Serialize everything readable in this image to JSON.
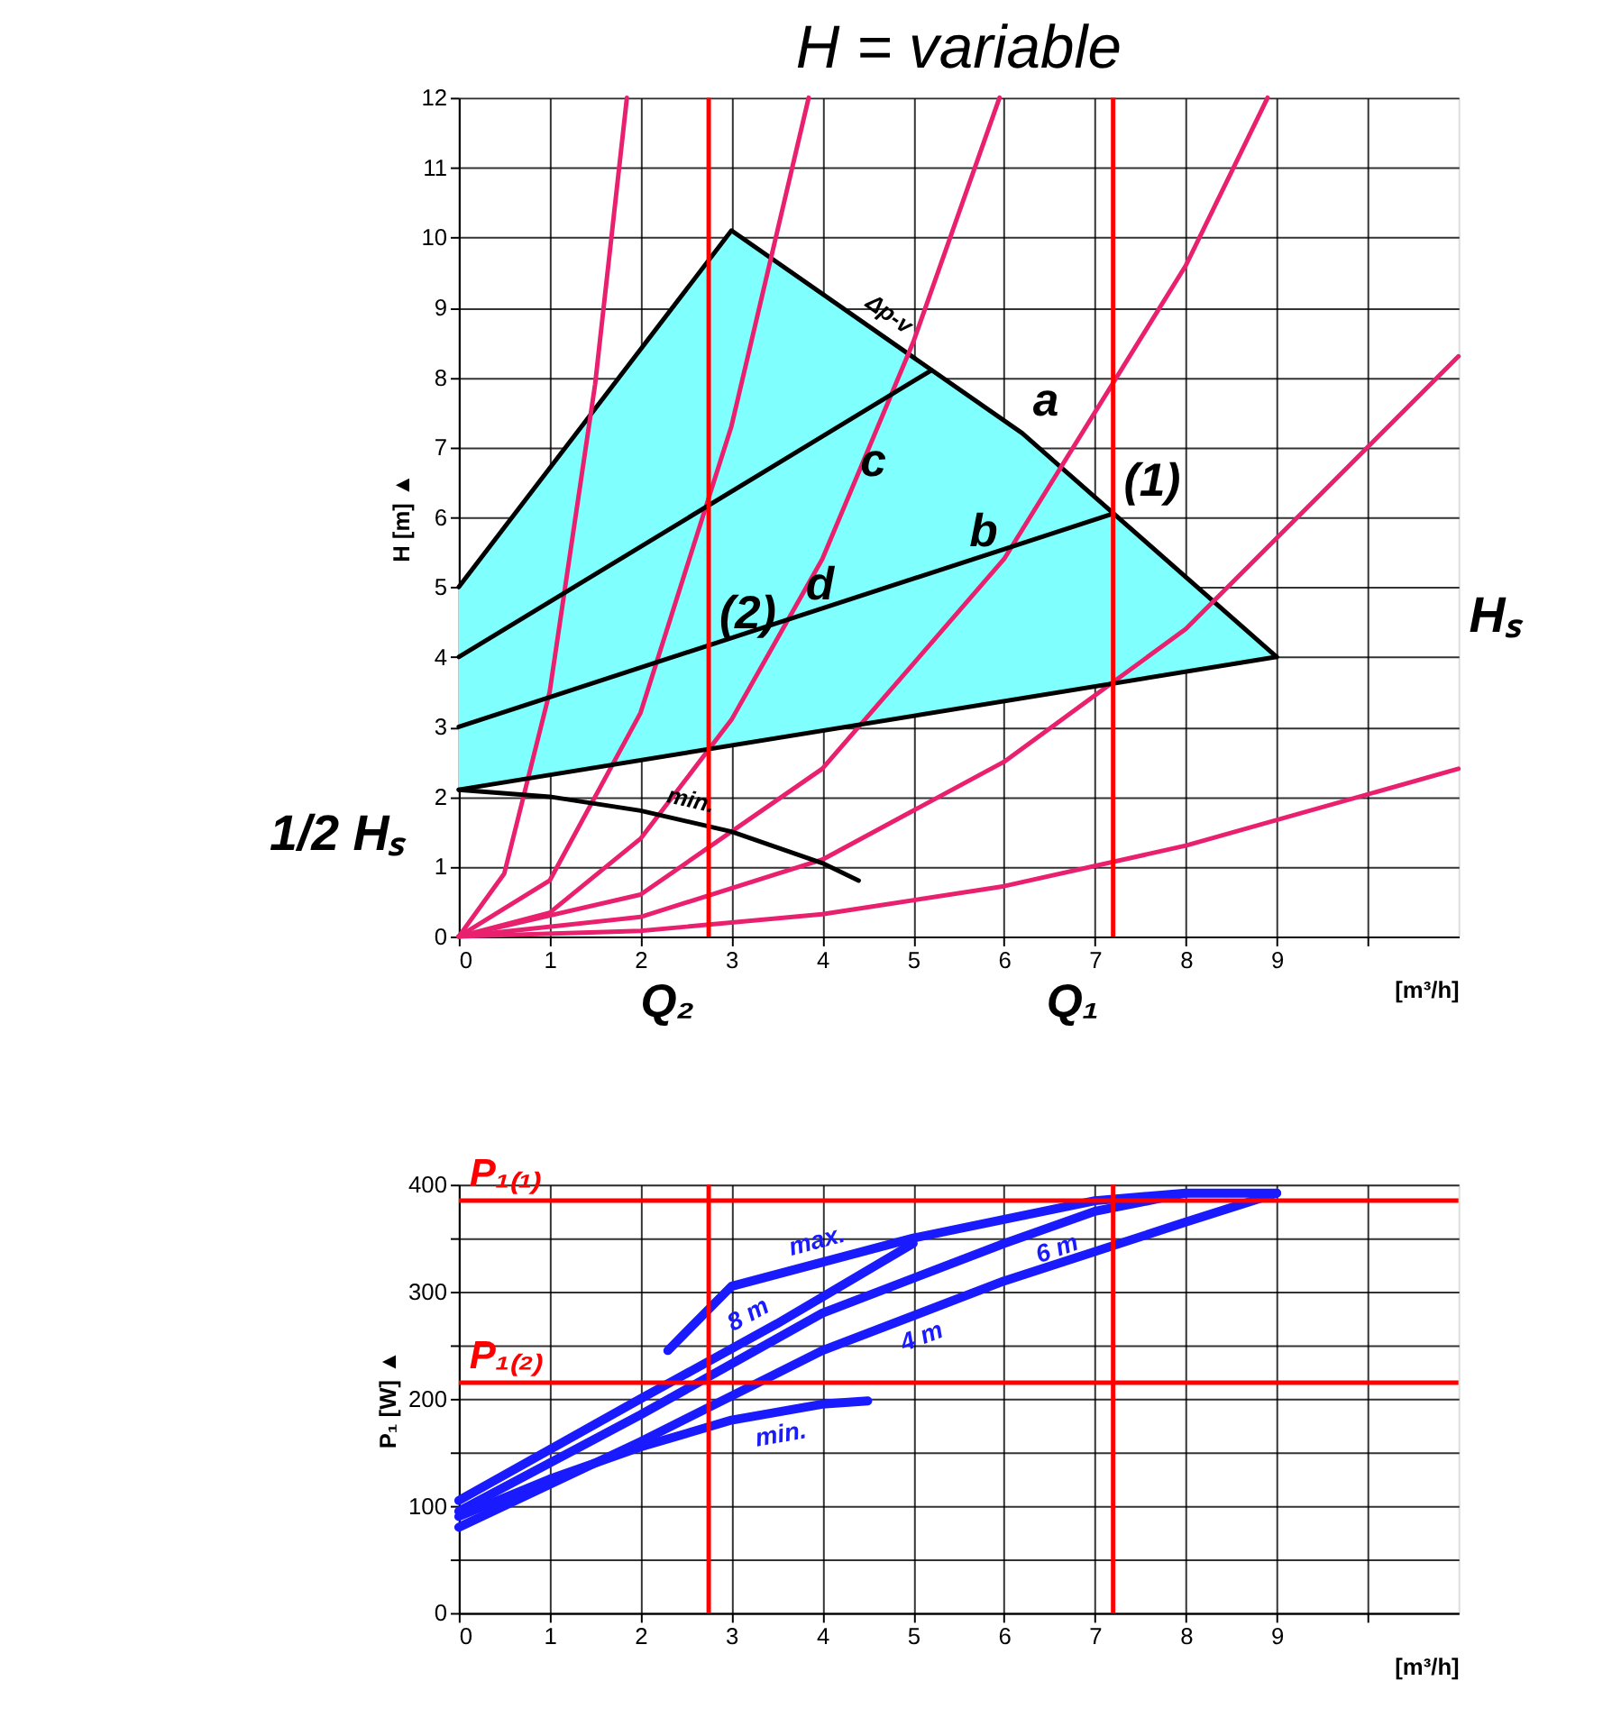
{
  "chart_data": [
    {
      "type": "line",
      "title": "H = variable",
      "xlabel": "[m³/h]",
      "ylabel": "H [m] ▲",
      "xlim": [
        0,
        11
      ],
      "xticks": [
        0,
        1,
        2,
        3,
        4,
        5,
        6,
        7,
        8,
        9,
        {
          "value": 10,
          "label": null
        }
      ],
      "ylim": [
        0,
        12
      ],
      "yticks": [
        0,
        1,
        2,
        3,
        4,
        5,
        6,
        7,
        8,
        9,
        10,
        11,
        12
      ],
      "grid": true,
      "legend": false,
      "series": [
        {
          "name": "Δp-v",
          "color": "#000000",
          "x": [
            0,
            3,
            6.2,
            9
          ],
          "values": [
            5,
            10.1,
            7.2,
            4
          ],
          "lower": [
            2.1,
            2.73,
            3.41,
            4
          ],
          "upper": [
            5,
            10.1,
            7.2,
            4
          ]
        },
        {
          "color": "#e8206e",
          "x": [
            0,
            0.5,
            1,
            1.5,
            1.85
          ],
          "values": [
            0,
            0.9,
            3.5,
            7.9,
            12
          ]
        },
        {
          "color": "#e8206e",
          "x": [
            0,
            1,
            2,
            3,
            3.85
          ],
          "values": [
            0,
            0.8,
            3.2,
            7.3,
            12
          ]
        },
        {
          "color": "#e8206e",
          "x": [
            0,
            1,
            2,
            3,
            4,
            5,
            5.95
          ],
          "values": [
            0,
            0.34,
            1.4,
            3.1,
            5.4,
            8.5,
            12
          ]
        },
        {
          "color": "#e8206e",
          "x": [
            0,
            2,
            4,
            6,
            8,
            8.9
          ],
          "values": [
            0,
            0.6,
            2.4,
            5.4,
            9.6,
            12
          ]
        },
        {
          "color": "#e8206e",
          "x": [
            0,
            2,
            4,
            6,
            8,
            11
          ],
          "values": [
            0,
            0.28,
            1.1,
            2.5,
            4.4,
            8.3
          ]
        },
        {
          "color": "#e8206e",
          "x": [
            0,
            2,
            4,
            6,
            8,
            11
          ],
          "values": [
            0,
            0.08,
            0.32,
            0.72,
            1.3,
            2.4
          ]
        },
        {
          "color": "#000000",
          "x": [
            0,
            5.2
          ],
          "values": [
            4,
            8.1
          ]
        },
        {
          "color": "#000000",
          "x": [
            0,
            7.2
          ],
          "values": [
            3,
            6.05
          ]
        },
        {
          "color": "#000000",
          "x": [
            0,
            9
          ],
          "values": [
            2.1,
            4
          ]
        },
        {
          "name": "min.",
          "color": "#000000",
          "x": [
            0,
            1,
            2,
            3,
            4,
            4.4
          ],
          "values": [
            2.1,
            2,
            1.8,
            1.5,
            1.05,
            0.8
          ]
        }
      ],
      "ref_lines": [
        {
          "axis": "x",
          "value": 2.75,
          "label": "Q₂",
          "color": "#ff0000"
        },
        {
          "axis": "x",
          "value": 7.2,
          "label": "Q₁",
          "color": "#ff0000"
        }
      ],
      "annotations": [
        {
          "text": "a",
          "x": 6.2,
          "y": 7.2
        },
        {
          "text": "(1)",
          "x": 7.2,
          "y": 6.05
        },
        {
          "text": "b",
          "x": 5.5,
          "y": 5.33
        },
        {
          "text": "c",
          "x": 4.3,
          "y": 6.33
        },
        {
          "text": "d",
          "x": 3.7,
          "y": 4.57
        },
        {
          "text": "(2)",
          "x": 2.75,
          "y": 4.16
        },
        "1/2 Hₛ",
        "Hₛ"
      ]
    },
    {
      "type": "line",
      "xlabel": "[m³/h]",
      "ylabel": "P₁ [W] ▲",
      "xlim": [
        0,
        11
      ],
      "xticks": [
        0,
        1,
        2,
        3,
        4,
        5,
        6,
        7,
        8,
        9,
        {
          "value": 10,
          "label": null
        }
      ],
      "ylim": [
        0,
        400
      ],
      "yticks": [
        0,
        {
          "value": 50,
          "label": null
        },
        100,
        {
          "value": 150,
          "label": null
        },
        200,
        {
          "value": 250,
          "label": null
        },
        300,
        {
          "value": 350,
          "label": null
        },
        400
      ],
      "grid": true,
      "legend": false,
      "series": [
        {
          "name": "max.",
          "color": "#1a1aff",
          "x": [
            2.3,
            3,
            5,
            7,
            8,
            9
          ],
          "values": [
            245,
            305,
            350,
            385,
            392,
            392
          ]
        },
        {
          "name": "8 m",
          "color": "#1a1aff",
          "x": [
            0,
            2,
            3.5,
            5
          ],
          "values": [
            105,
            200,
            270,
            345
          ]
        },
        {
          "name": "6 m",
          "color": "#1a1aff",
          "x": [
            0,
            2,
            4,
            6,
            7,
            8
          ],
          "values": [
            95,
            185,
            280,
            345,
            375,
            392
          ]
        },
        {
          "name": "min.",
          "color": "#1a1aff",
          "x": [
            0,
            1,
            2,
            3,
            4,
            4.5
          ],
          "values": [
            90,
            125,
            155,
            180,
            195,
            198
          ]
        },
        {
          "name": "4 m",
          "color": "#1a1aff",
          "x": [
            0,
            2,
            4,
            6,
            8,
            9
          ],
          "values": [
            80,
            160,
            245,
            310,
            365,
            392
          ]
        }
      ],
      "ref_lines": [
        {
          "axis": "x",
          "value": 2.75,
          "color": "#ff0000"
        },
        {
          "axis": "x",
          "value": 7.2,
          "color": "#ff0000"
        },
        {
          "axis": "y",
          "value": 385,
          "label": "P₁₍₁₎",
          "color": "#ff0000"
        },
        {
          "axis": "y",
          "value": 215,
          "label": "P₁₍₂₎",
          "color": "#ff0000"
        }
      ]
    }
  ]
}
